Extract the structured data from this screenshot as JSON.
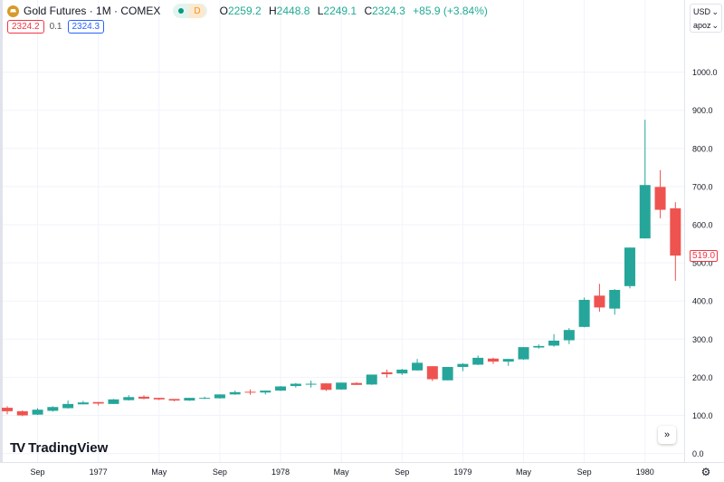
{
  "header": {
    "title": "Gold Futures · 1M · COMEX",
    "badge_letter": "D",
    "ohlc": {
      "o_label": "O",
      "o": "2259.2",
      "h_label": "H",
      "h": "2448.8",
      "l_label": "L",
      "l": "2249.1",
      "c_label": "C",
      "c": "2324.3",
      "change": "+85.9 (+3.84%)"
    },
    "bid": "2324.2",
    "spread": "0.1",
    "ask": "2324.3"
  },
  "currency_select": "USD",
  "unit_select": "apoz",
  "last_price_label": "519.0",
  "brand": "TradingView",
  "scroll_button": "»",
  "settings_icon": "⚙",
  "colors": {
    "up": "#26a69a",
    "down": "#ef5350",
    "grid": "#f0f3fa"
  },
  "chart_data": {
    "type": "candlestick",
    "title": "Gold Futures · 1M · COMEX",
    "y_ticks": [
      "0.0",
      "100.0",
      "200.0",
      "300.0",
      "400.0",
      "500.0",
      "600.0",
      "700.0",
      "800.0",
      "900.0",
      "1000.0"
    ],
    "ylim": [
      0,
      1000
    ],
    "x_ticks": [
      {
        "label": "Sep",
        "index": 2
      },
      {
        "label": "1977",
        "index": 6
      },
      {
        "label": "May",
        "index": 10
      },
      {
        "label": "Sep",
        "index": 14
      },
      {
        "label": "1978",
        "index": 18
      },
      {
        "label": "May",
        "index": 22
      },
      {
        "label": "Sep",
        "index": 26
      },
      {
        "label": "1979",
        "index": 30
      },
      {
        "label": "May",
        "index": 34
      },
      {
        "label": "Sep",
        "index": 38
      },
      {
        "label": "1980",
        "index": 42
      }
    ],
    "months": [
      "1976-07",
      "1976-08",
      "1976-09",
      "1976-10",
      "1976-11",
      "1976-12",
      "1977-01",
      "1977-02",
      "1977-03",
      "1977-04",
      "1977-05",
      "1977-06",
      "1977-07",
      "1977-08",
      "1977-09",
      "1977-10",
      "1977-11",
      "1977-12",
      "1978-01",
      "1978-02",
      "1978-03",
      "1978-04",
      "1978-05",
      "1978-06",
      "1978-07",
      "1978-08",
      "1978-09",
      "1978-10",
      "1978-11",
      "1978-12",
      "1979-01",
      "1979-02",
      "1979-03",
      "1979-04",
      "1979-05",
      "1979-06",
      "1979-07",
      "1979-08",
      "1979-09",
      "1979-10",
      "1979-11",
      "1979-12",
      "1980-01",
      "1980-02",
      "1980-03"
    ],
    "open": [
      120,
      111,
      102,
      112,
      119,
      129,
      135,
      130,
      140,
      149,
      146,
      143,
      139,
      144,
      145,
      155,
      162,
      160,
      165,
      177,
      182,
      184,
      168,
      185,
      181,
      213,
      210,
      218,
      229,
      192,
      227,
      233,
      249,
      241,
      247,
      278,
      283,
      297,
      332,
      414,
      380,
      439,
      564,
      699,
      643
    ],
    "high": [
      124,
      113,
      119,
      124,
      139,
      138,
      135,
      143,
      153,
      153,
      146,
      143,
      146,
      149,
      155,
      165,
      168,
      165,
      177,
      185,
      191,
      184,
      186,
      187,
      207,
      220,
      222,
      248,
      229,
      227,
      237,
      257,
      251,
      248,
      279,
      286,
      313,
      329,
      409,
      445,
      431,
      540,
      875,
      743,
      659
    ],
    "low": [
      103,
      98,
      101,
      110,
      118,
      129,
      126,
      130,
      139,
      142,
      140,
      137,
      138,
      143,
      144,
      154,
      154,
      155,
      164,
      173,
      173,
      164,
      167,
      180,
      180,
      199,
      206,
      217,
      190,
      192,
      216,
      232,
      235,
      230,
      246,
      275,
      280,
      287,
      331,
      372,
      364,
      433,
      564,
      617,
      453
    ],
    "close": [
      111,
      100,
      115,
      122,
      130,
      134,
      131,
      142,
      148,
      144,
      142,
      139,
      146,
      146,
      155,
      161,
      161,
      165,
      176,
      183,
      183,
      167,
      186,
      180,
      207,
      208,
      220,
      238,
      195,
      227,
      235,
      251,
      241,
      248,
      279,
      282,
      296,
      324,
      403,
      383,
      429,
      540,
      704,
      639,
      519
    ]
  }
}
